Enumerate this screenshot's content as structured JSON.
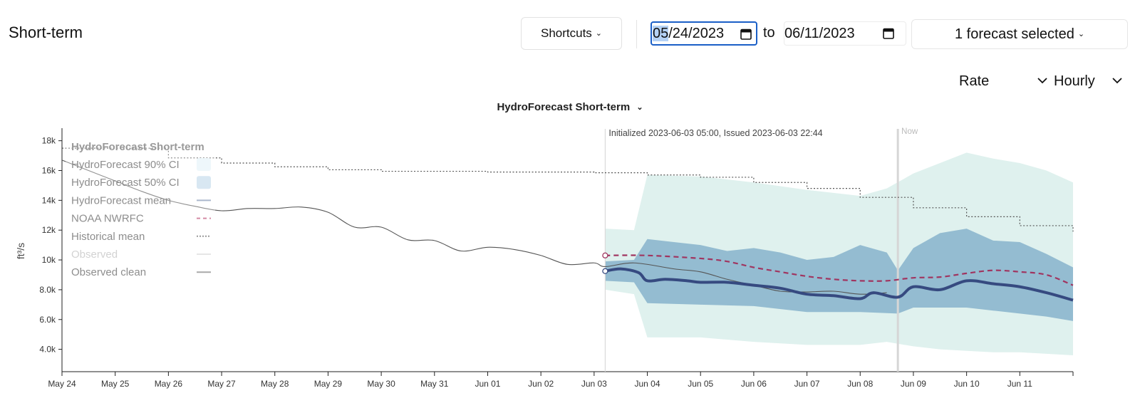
{
  "header": {
    "title": "Short-term",
    "shortcuts_label": "Shortcuts",
    "date_start_selected": "05",
    "date_start_rest": "/24/2023",
    "to_label": "to",
    "date_end": "06/11/2023",
    "forecast_selector_label": "1 forecast selected"
  },
  "controls": {
    "rate_label": "Rate",
    "interval_label": "Hourly"
  },
  "icons": {
    "chevron": "chevron-down-icon",
    "calendar": "calendar-icon"
  },
  "colors": {
    "ci90": "#dff1ee",
    "ci50": "#8fb8cf",
    "mean": "#364a80",
    "noaa": "#a03560",
    "historical": "#555555",
    "observed": "#555555",
    "now_line": "#d6d6d6",
    "init_line": "#dadada"
  },
  "chart_data": {
    "type": "line",
    "title": "HydroForecast Short-term",
    "ylabel": "ft³/s",
    "ylim": [
      2500,
      18700
    ],
    "yticks": [
      4000,
      6000,
      8000,
      10000,
      12000,
      14000,
      16000,
      18000
    ],
    "ytick_labels": [
      "4.0k",
      "6.0k",
      "8.0k",
      "10k",
      "12k",
      "14k",
      "16k",
      "18k"
    ],
    "xlim": [
      "2023-05-24",
      "2023-06-12"
    ],
    "xticks": [
      "2023-05-24",
      "2023-05-25",
      "2023-05-26",
      "2023-05-27",
      "2023-05-28",
      "2023-05-29",
      "2023-05-30",
      "2023-05-31",
      "2023-06-01",
      "2023-06-02",
      "2023-06-03",
      "2023-06-04",
      "2023-06-05",
      "2023-06-06",
      "2023-06-07",
      "2023-06-08",
      "2023-06-09",
      "2023-06-10",
      "2023-06-11"
    ],
    "xtick_labels": [
      "May 24",
      "May 25",
      "May 26",
      "May 27",
      "May 28",
      "May 29",
      "May 30",
      "May 31",
      "Jun 01",
      "Jun 02",
      "Jun 03",
      "Jun 04",
      "Jun 05",
      "Jun 06",
      "Jun 07",
      "Jun 08",
      "Jun 09",
      "Jun 10",
      "Jun 11"
    ],
    "annotations": {
      "init_time": "2023-06-03T05:00",
      "init_text": "Initialized 2023-06-03 05:00, Issued 2023-06-03 22:44",
      "now_time": "2023-06-08T17:00",
      "now_text": "Now"
    },
    "legend": {
      "placement": "top-left",
      "title": "HydroForecast Short-term",
      "items": [
        {
          "label": "HydroForecast 90% CI",
          "kind": "area",
          "series": "ci90"
        },
        {
          "label": "HydroForecast 50% CI",
          "kind": "area",
          "series": "ci50"
        },
        {
          "label": "HydroForecast mean",
          "kind": "line",
          "series": "mean"
        },
        {
          "label": "NOAA NWRFC",
          "kind": "dash",
          "series": "noaa"
        },
        {
          "label": "Historical mean",
          "kind": "dot",
          "series": "historical"
        },
        {
          "label": "Observed",
          "kind": "faint",
          "series": "observed"
        },
        {
          "label": "Observed clean",
          "kind": "line-gray",
          "series": "observed_clean"
        }
      ]
    },
    "series": [
      {
        "name": "Historical mean",
        "key": "historical",
        "style": "step-dotted",
        "points": [
          [
            "2023-05-24T00:00",
            17500
          ],
          [
            "2023-05-26T00:00",
            16850
          ],
          [
            "2023-05-27T00:00",
            16500
          ],
          [
            "2023-05-28T00:00",
            16250
          ],
          [
            "2023-05-29T00:00",
            16050
          ],
          [
            "2023-05-30T00:00",
            15950
          ],
          [
            "2023-06-01T00:00",
            15900
          ],
          [
            "2023-06-03T00:00",
            15850
          ],
          [
            "2023-06-04T00:00",
            15700
          ],
          [
            "2023-06-05T00:00",
            15550
          ],
          [
            "2023-06-06T00:00",
            15200
          ],
          [
            "2023-06-07T00:00",
            14800
          ],
          [
            "2023-06-08T00:00",
            14200
          ],
          [
            "2023-06-09T00:00",
            13500
          ],
          [
            "2023-06-10T00:00",
            12900
          ],
          [
            "2023-06-11T00:00",
            12300
          ],
          [
            "2023-06-12T00:00",
            11900
          ]
        ]
      },
      {
        "name": "Observed clean",
        "key": "observed_clean",
        "points": [
          [
            "2023-05-24T00:00",
            16700
          ],
          [
            "2023-05-24T12:00",
            16000
          ],
          [
            "2023-05-25T00:00",
            15300
          ],
          [
            "2023-05-25T12:00",
            14600
          ],
          [
            "2023-05-26T00:00",
            14000
          ],
          [
            "2023-05-26T12:00",
            13600
          ],
          [
            "2023-05-27T00:00",
            13300
          ],
          [
            "2023-05-27T12:00",
            13450
          ],
          [
            "2023-05-28T00:00",
            13450
          ],
          [
            "2023-05-28T12:00",
            13550
          ],
          [
            "2023-05-29T00:00",
            13200
          ],
          [
            "2023-05-29T12:00",
            12200
          ],
          [
            "2023-05-30T00:00",
            12200
          ],
          [
            "2023-05-30T12:00",
            11350
          ],
          [
            "2023-05-31T00:00",
            11300
          ],
          [
            "2023-05-31T12:00",
            10600
          ],
          [
            "2023-06-01T00:00",
            10850
          ],
          [
            "2023-06-01T12:00",
            10700
          ],
          [
            "2023-06-02T00:00",
            10300
          ],
          [
            "2023-06-02T12:00",
            9700
          ],
          [
            "2023-06-03T00:00",
            9800
          ],
          [
            "2023-06-03T05:00",
            9550
          ],
          [
            "2023-06-03T18:00",
            9800
          ],
          [
            "2023-06-04T12:00",
            9400
          ],
          [
            "2023-06-05T00:00",
            9200
          ],
          [
            "2023-06-05T12:00",
            8700
          ],
          [
            "2023-06-06T00:00",
            8300
          ],
          [
            "2023-06-06T12:00",
            7900
          ],
          [
            "2023-06-07T00:00",
            7850
          ],
          [
            "2023-06-07T12:00",
            7900
          ],
          [
            "2023-06-08T00:00",
            7700
          ],
          [
            "2023-06-08T12:00",
            7800
          ]
        ]
      },
      {
        "name": "HydroForecast 90% CI",
        "key": "ci90",
        "upper": [
          [
            "2023-06-03T05:00",
            12100
          ],
          [
            "2023-06-03T18:00",
            12000
          ],
          [
            "2023-06-04T00:00",
            15700
          ],
          [
            "2023-06-05T00:00",
            15600
          ],
          [
            "2023-06-06T00:00",
            15200
          ],
          [
            "2023-06-07T00:00",
            14700
          ],
          [
            "2023-06-08T00:00",
            14300
          ],
          [
            "2023-06-08T12:00",
            14800
          ],
          [
            "2023-06-09T00:00",
            15800
          ],
          [
            "2023-06-09T12:00",
            16500
          ],
          [
            "2023-06-10T00:00",
            17200
          ],
          [
            "2023-06-10T12:00",
            16800
          ],
          [
            "2023-06-11T00:00",
            16500
          ],
          [
            "2023-06-11T12:00",
            16000
          ],
          [
            "2023-06-12T00:00",
            15200
          ]
        ],
        "lower": [
          [
            "2023-06-03T05:00",
            8000
          ],
          [
            "2023-06-03T18:00",
            7700
          ],
          [
            "2023-06-04T00:00",
            4800
          ],
          [
            "2023-06-05T00:00",
            4800
          ],
          [
            "2023-06-06T00:00",
            4500
          ],
          [
            "2023-06-07T00:00",
            4300
          ],
          [
            "2023-06-08T00:00",
            4300
          ],
          [
            "2023-06-08T12:00",
            4500
          ],
          [
            "2023-06-09T00:00",
            4200
          ],
          [
            "2023-06-09T12:00",
            4000
          ],
          [
            "2023-06-10T00:00",
            3900
          ],
          [
            "2023-06-10T12:00",
            3800
          ],
          [
            "2023-06-11T00:00",
            3800
          ],
          [
            "2023-06-11T12:00",
            3700
          ],
          [
            "2023-06-12T00:00",
            3600
          ]
        ]
      },
      {
        "name": "HydroForecast 50% CI",
        "key": "ci50",
        "upper": [
          [
            "2023-06-03T05:00",
            9900
          ],
          [
            "2023-06-03T18:00",
            10000
          ],
          [
            "2023-06-04T00:00",
            11400
          ],
          [
            "2023-06-04T12:00",
            11200
          ],
          [
            "2023-06-05T00:00",
            11000
          ],
          [
            "2023-06-05T12:00",
            10600
          ],
          [
            "2023-06-06T00:00",
            10800
          ],
          [
            "2023-06-06T12:00",
            10500
          ],
          [
            "2023-06-07T00:00",
            10000
          ],
          [
            "2023-06-07T12:00",
            10200
          ],
          [
            "2023-06-08T00:00",
            11000
          ],
          [
            "2023-06-08T12:00",
            10500
          ],
          [
            "2023-06-08T17:00",
            9300
          ],
          [
            "2023-06-09T00:00",
            10800
          ],
          [
            "2023-06-09T12:00",
            11800
          ],
          [
            "2023-06-10T00:00",
            12100
          ],
          [
            "2023-06-10T12:00",
            11300
          ],
          [
            "2023-06-11T00:00",
            11200
          ],
          [
            "2023-06-11T12:00",
            10400
          ],
          [
            "2023-06-12T00:00",
            9500
          ]
        ],
        "lower": [
          [
            "2023-06-03T05:00",
            8600
          ],
          [
            "2023-06-03T18:00",
            8500
          ],
          [
            "2023-06-04T00:00",
            7100
          ],
          [
            "2023-06-05T00:00",
            7000
          ],
          [
            "2023-06-06T00:00",
            6900
          ],
          [
            "2023-06-07T00:00",
            6500
          ],
          [
            "2023-06-08T00:00",
            6500
          ],
          [
            "2023-06-08T17:00",
            6400
          ],
          [
            "2023-06-09T00:00",
            6800
          ],
          [
            "2023-06-10T00:00",
            6800
          ],
          [
            "2023-06-10T12:00",
            6600
          ],
          [
            "2023-06-11T00:00",
            6400
          ],
          [
            "2023-06-11T12:00",
            6200
          ],
          [
            "2023-06-12T00:00",
            5900
          ]
        ]
      },
      {
        "name": "NOAA NWRFC",
        "key": "noaa",
        "marker_start": true,
        "points": [
          [
            "2023-06-03T05:00",
            10300
          ],
          [
            "2023-06-04T00:00",
            10300
          ],
          [
            "2023-06-05T00:00",
            10100
          ],
          [
            "2023-06-05T12:00",
            9900
          ],
          [
            "2023-06-06T00:00",
            9500
          ],
          [
            "2023-06-06T12:00",
            9200
          ],
          [
            "2023-06-07T00:00",
            8900
          ],
          [
            "2023-06-07T12:00",
            8700
          ],
          [
            "2023-06-08T00:00",
            8600
          ],
          [
            "2023-06-08T12:00",
            8600
          ],
          [
            "2023-06-09T00:00",
            8800
          ],
          [
            "2023-06-09T12:00",
            8850
          ],
          [
            "2023-06-10T00:00",
            9100
          ],
          [
            "2023-06-10T12:00",
            9300
          ],
          [
            "2023-06-11T00:00",
            9200
          ],
          [
            "2023-06-11T12:00",
            9000
          ],
          [
            "2023-06-12T00:00",
            8300
          ]
        ]
      },
      {
        "name": "HydroForecast mean",
        "key": "mean",
        "marker_start": true,
        "points": [
          [
            "2023-06-03T05:00",
            9250
          ],
          [
            "2023-06-03T12:00",
            9400
          ],
          [
            "2023-06-03T20:00",
            9150
          ],
          [
            "2023-06-04T00:00",
            8600
          ],
          [
            "2023-06-04T08:00",
            8700
          ],
          [
            "2023-06-04T18:00",
            8600
          ],
          [
            "2023-06-05T00:00",
            8500
          ],
          [
            "2023-06-05T12:00",
            8500
          ],
          [
            "2023-06-06T00:00",
            8300
          ],
          [
            "2023-06-06T12:00",
            8100
          ],
          [
            "2023-06-07T00:00",
            7700
          ],
          [
            "2023-06-07T12:00",
            7600
          ],
          [
            "2023-06-08T00:00",
            7400
          ],
          [
            "2023-06-08T06:00",
            7800
          ],
          [
            "2023-06-08T17:00",
            7500
          ],
          [
            "2023-06-09T00:00",
            8200
          ],
          [
            "2023-06-09T12:00",
            8000
          ],
          [
            "2023-06-10T00:00",
            8600
          ],
          [
            "2023-06-10T12:00",
            8400
          ],
          [
            "2023-06-11T00:00",
            8200
          ],
          [
            "2023-06-11T12:00",
            7800
          ],
          [
            "2023-06-12T00:00",
            7300
          ]
        ]
      }
    ]
  }
}
